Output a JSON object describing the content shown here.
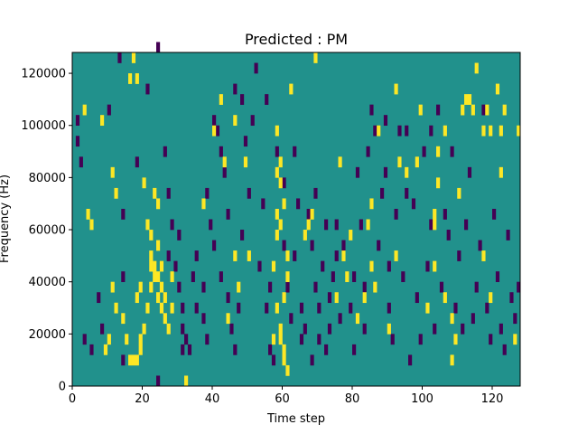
{
  "chart_data": {
    "type": "heatmap",
    "title": "Predicted : PM",
    "xlabel": "Time step",
    "ylabel": "Frequency (Hz)",
    "xlim": [
      0,
      128
    ],
    "ylim": [
      0,
      128000
    ],
    "x_ticks": [
      "0",
      "20",
      "40",
      "60",
      "80",
      "100",
      "120"
    ],
    "y_ticks": [
      "0",
      "20000",
      "40000",
      "60000",
      "80000",
      "100000",
      "120000"
    ],
    "grid": false,
    "colormap": "viridis",
    "colors": {
      "background": "#21918c",
      "high": "#fde725",
      "low": "#440154"
    },
    "cells": {
      "high": [
        [
          16,
          8000
        ],
        [
          17,
          8000
        ],
        [
          18,
          8000
        ],
        [
          19,
          12000
        ],
        [
          19,
          16000
        ],
        [
          20,
          20000
        ],
        [
          21,
          28000
        ],
        [
          22,
          36000
        ],
        [
          22,
          44000
        ],
        [
          22,
          48000
        ],
        [
          23,
          40000
        ],
        [
          23,
          44000
        ],
        [
          24,
          40000
        ],
        [
          24,
          52000
        ],
        [
          25,
          44000
        ],
        [
          25,
          36000
        ],
        [
          24,
          68000
        ],
        [
          23,
          72000
        ],
        [
          20,
          76000
        ],
        [
          26,
          24000
        ],
        [
          27,
          20000
        ],
        [
          26,
          32000
        ],
        [
          18,
          32000
        ],
        [
          19,
          36000
        ],
        [
          15,
          16000
        ],
        [
          14,
          24000
        ],
        [
          12,
          28000
        ],
        [
          11,
          36000
        ],
        [
          10,
          16000
        ],
        [
          9,
          12000
        ],
        [
          5,
          60000
        ],
        [
          4,
          64000
        ],
        [
          3,
          104000
        ],
        [
          8,
          100000
        ],
        [
          12,
          72000
        ],
        [
          11,
          80000
        ],
        [
          16,
          116000
        ],
        [
          17,
          124000
        ],
        [
          18,
          116000
        ],
        [
          21,
          60000
        ],
        [
          22,
          56000
        ],
        [
          28,
          28000
        ],
        [
          32,
          0
        ],
        [
          40,
          96000
        ],
        [
          42,
          108000
        ],
        [
          43,
          84000
        ],
        [
          46,
          100000
        ],
        [
          49,
          84000
        ],
        [
          50,
          48000
        ],
        [
          58,
          80000
        ],
        [
          59,
          76000
        ],
        [
          58,
          64000
        ],
        [
          59,
          60000
        ],
        [
          58,
          56000
        ],
        [
          57,
          44000
        ],
        [
          58,
          28000
        ],
        [
          59,
          20000
        ],
        [
          59,
          16000
        ],
        [
          60,
          12000
        ],
        [
          60,
          8000
        ],
        [
          61,
          4000
        ],
        [
          57,
          16000
        ],
        [
          58,
          96000
        ],
        [
          59,
          84000
        ],
        [
          60,
          68000
        ],
        [
          61,
          40000
        ],
        [
          60,
          32000
        ],
        [
          62,
          112000
        ],
        [
          66,
          56000
        ],
        [
          67,
          60000
        ],
        [
          68,
          64000
        ],
        [
          69,
          124000
        ],
        [
          76,
          84000
        ],
        [
          77,
          48000
        ],
        [
          78,
          40000
        ],
        [
          75,
          32000
        ],
        [
          79,
          56000
        ],
        [
          81,
          24000
        ],
        [
          83,
          32000
        ],
        [
          86,
          36000
        ],
        [
          85,
          44000
        ],
        [
          84,
          60000
        ],
        [
          85,
          68000
        ],
        [
          87,
          96000
        ],
        [
          90,
          20000
        ],
        [
          92,
          48000
        ],
        [
          95,
          80000
        ],
        [
          92,
          112000
        ],
        [
          93,
          84000
        ],
        [
          98,
          84000
        ],
        [
          99,
          104000
        ],
        [
          101,
          28000
        ],
        [
          103,
          44000
        ],
        [
          103,
          60000
        ],
        [
          103,
          64000
        ],
        [
          104,
          76000
        ],
        [
          104,
          88000
        ],
        [
          106,
          32000
        ],
        [
          106,
          96000
        ],
        [
          108,
          24000
        ],
        [
          108,
          8000
        ],
        [
          109,
          16000
        ],
        [
          110,
          72000
        ],
        [
          111,
          104000
        ],
        [
          112,
          108000
        ],
        [
          113,
          108000
        ],
        [
          114,
          104000
        ],
        [
          115,
          120000
        ],
        [
          117,
          48000
        ],
        [
          117,
          96000
        ],
        [
          118,
          104000
        ],
        [
          119,
          96000
        ],
        [
          119,
          32000
        ],
        [
          121,
          112000
        ],
        [
          122,
          96000
        ],
        [
          122,
          80000
        ],
        [
          123,
          104000
        ],
        [
          126,
          16000
        ],
        [
          127,
          96000
        ],
        [
          61,
          48000
        ],
        [
          37,
          68000
        ],
        [
          44,
          24000
        ],
        [
          46,
          48000
        ],
        [
          47,
          36000
        ],
        [
          28,
          40000
        ],
        [
          25,
          28000
        ],
        [
          24,
          32000
        ]
      ],
      "low": [
        [
          1,
          100000
        ],
        [
          1,
          92000
        ],
        [
          2,
          84000
        ],
        [
          3,
          16000
        ],
        [
          5,
          12000
        ],
        [
          7,
          32000
        ],
        [
          8,
          20000
        ],
        [
          10,
          104000
        ],
        [
          13,
          124000
        ],
        [
          14,
          64000
        ],
        [
          14,
          40000
        ],
        [
          14,
          8000
        ],
        [
          18,
          84000
        ],
        [
          21,
          112000
        ],
        [
          24,
          128000
        ],
        [
          24,
          0
        ],
        [
          26,
          88000
        ],
        [
          27,
          72000
        ],
        [
          28,
          60000
        ],
        [
          27,
          48000
        ],
        [
          29,
          44000
        ],
        [
          30,
          56000
        ],
        [
          30,
          36000
        ],
        [
          31,
          28000
        ],
        [
          31,
          20000
        ],
        [
          31,
          12000
        ],
        [
          32,
          16000
        ],
        [
          33,
          12000
        ],
        [
          34,
          40000
        ],
        [
          35,
          48000
        ],
        [
          35,
          28000
        ],
        [
          37,
          24000
        ],
        [
          37,
          36000
        ],
        [
          38,
          72000
        ],
        [
          39,
          60000
        ],
        [
          40,
          52000
        ],
        [
          40,
          100000
        ],
        [
          41,
          96000
        ],
        [
          42,
          88000
        ],
        [
          43,
          80000
        ],
        [
          44,
          64000
        ],
        [
          44,
          32000
        ],
        [
          45,
          20000
        ],
        [
          46,
          12000
        ],
        [
          47,
          28000
        ],
        [
          48,
          56000
        ],
        [
          48,
          108000
        ],
        [
          49,
          92000
        ],
        [
          50,
          72000
        ],
        [
          51,
          100000
        ],
        [
          52,
          120000
        ],
        [
          53,
          44000
        ],
        [
          54,
          68000
        ],
        [
          55,
          28000
        ],
        [
          56,
          36000
        ],
        [
          56,
          12000
        ],
        [
          57,
          8000
        ],
        [
          58,
          88000
        ],
        [
          60,
          76000
        ],
        [
          60,
          52000
        ],
        [
          61,
          36000
        ],
        [
          62,
          24000
        ],
        [
          63,
          88000
        ],
        [
          63,
          48000
        ],
        [
          64,
          68000
        ],
        [
          65,
          28000
        ],
        [
          65,
          16000
        ],
        [
          66,
          20000
        ],
        [
          67,
          64000
        ],
        [
          68,
          52000
        ],
        [
          68,
          8000
        ],
        [
          69,
          36000
        ],
        [
          70,
          28000
        ],
        [
          70,
          16000
        ],
        [
          71,
          44000
        ],
        [
          72,
          60000
        ],
        [
          72,
          12000
        ],
        [
          73,
          20000
        ],
        [
          73,
          32000
        ],
        [
          74,
          40000
        ],
        [
          75,
          48000
        ],
        [
          75,
          60000
        ],
        [
          76,
          24000
        ],
        [
          77,
          52000
        ],
        [
          79,
          28000
        ],
        [
          80,
          12000
        ],
        [
          80,
          40000
        ],
        [
          81,
          80000
        ],
        [
          82,
          60000
        ],
        [
          83,
          36000
        ],
        [
          83,
          20000
        ],
        [
          84,
          88000
        ],
        [
          85,
          104000
        ],
        [
          86,
          96000
        ],
        [
          87,
          52000
        ],
        [
          88,
          72000
        ],
        [
          89,
          80000
        ],
        [
          90,
          44000
        ],
        [
          90,
          28000
        ],
        [
          91,
          16000
        ],
        [
          92,
          64000
        ],
        [
          93,
          96000
        ],
        [
          94,
          40000
        ],
        [
          95,
          72000
        ],
        [
          96,
          8000
        ],
        [
          97,
          68000
        ],
        [
          98,
          32000
        ],
        [
          99,
          16000
        ],
        [
          100,
          88000
        ],
        [
          101,
          44000
        ],
        [
          102,
          60000
        ],
        [
          103,
          20000
        ],
        [
          104,
          104000
        ],
        [
          105,
          36000
        ],
        [
          106,
          64000
        ],
        [
          107,
          56000
        ],
        [
          108,
          88000
        ],
        [
          109,
          28000
        ],
        [
          110,
          48000
        ],
        [
          111,
          20000
        ],
        [
          112,
          60000
        ],
        [
          113,
          80000
        ],
        [
          114,
          24000
        ],
        [
          115,
          36000
        ],
        [
          116,
          52000
        ],
        [
          117,
          104000
        ],
        [
          118,
          28000
        ],
        [
          119,
          16000
        ],
        [
          120,
          64000
        ],
        [
          121,
          40000
        ],
        [
          122,
          20000
        ],
        [
          123,
          12000
        ],
        [
          124,
          56000
        ],
        [
          125,
          32000
        ],
        [
          126,
          24000
        ],
        [
          127,
          36000
        ],
        [
          102,
          96000
        ],
        [
          95,
          96000
        ],
        [
          89,
          100000
        ],
        [
          69,
          72000
        ],
        [
          42,
          40000
        ],
        [
          38,
          16000
        ],
        [
          46,
          112000
        ],
        [
          55,
          108000
        ]
      ]
    }
  }
}
